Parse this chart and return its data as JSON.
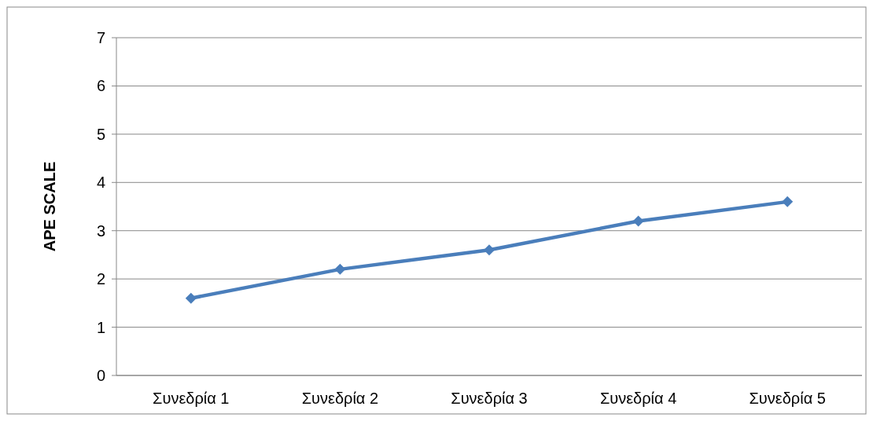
{
  "chart_data": {
    "type": "line",
    "ylabel": "APE SCALE",
    "categories": [
      "Συνεδρία 1",
      "Συνεδρία 2",
      "Συνεδρία 3",
      "Συνεδρία 4",
      "Συνεδρία 5"
    ],
    "series": [
      {
        "color": "#4a7ebb",
        "values": [
          1.6,
          2.2,
          2.6,
          3.2,
          3.6
        ]
      }
    ],
    "ylim": [
      0,
      7
    ],
    "yticks": [
      0,
      1,
      2,
      3,
      4,
      5,
      6,
      7
    ],
    "grid": "y",
    "marker": "diamond",
    "line_style": "solid"
  }
}
